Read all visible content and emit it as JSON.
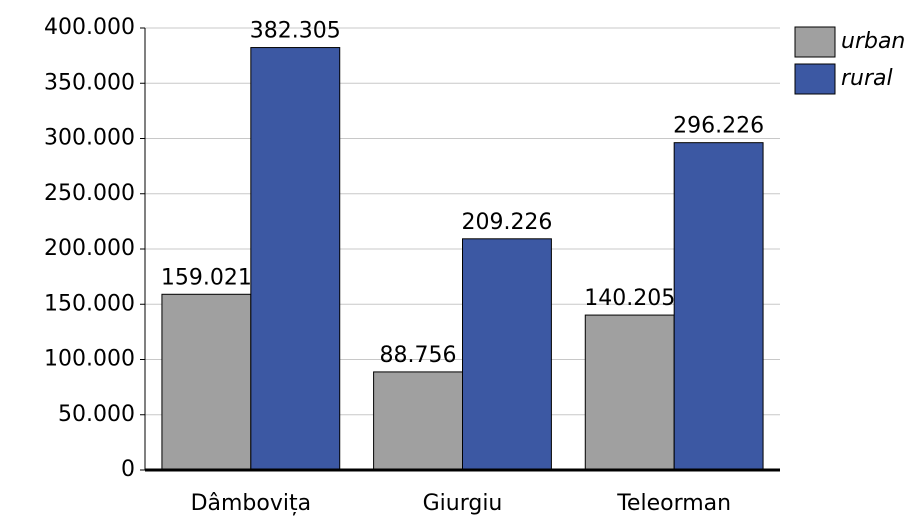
{
  "chart_data": {
    "type": "bar",
    "categories": [
      "Dâmbovița",
      "Giurgiu",
      "Teleorman"
    ],
    "series": [
      {
        "name": "urban",
        "color": "#a0a0a0",
        "values": [
          159021,
          88756,
          140205
        ],
        "value_labels": [
          "159.021",
          "88.756",
          "140.205"
        ]
      },
      {
        "name": "rural",
        "color": "#3c58a3",
        "values": [
          382305,
          209226,
          296226
        ],
        "value_labels": [
          "382.305",
          "209.226",
          "296.226"
        ]
      }
    ],
    "ylim": [
      0,
      400000
    ],
    "yticks": [
      0,
      {
        "value": 50000,
        "label": "50.000"
      },
      {
        "value": 100000,
        "label": "100.000"
      },
      {
        "value": 150000,
        "label": "150.000"
      },
      {
        "value": 200000,
        "label": "200.000"
      },
      {
        "value": 250000,
        "label": "250.000"
      },
      {
        "value": 300000,
        "label": "300.000"
      },
      {
        "value": 350000,
        "label": "350.000"
      },
      {
        "value": 400000,
        "label": "400.000"
      }
    ],
    "grid": true,
    "legend": "right"
  }
}
